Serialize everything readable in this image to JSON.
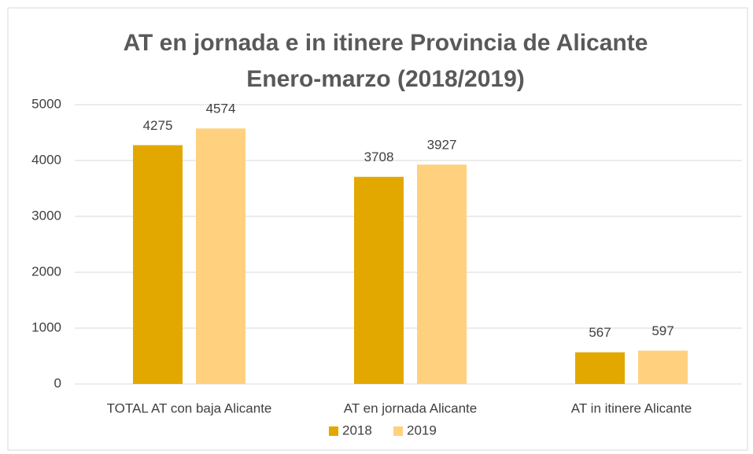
{
  "chart_data": {
    "type": "bar",
    "title": [
      "AT en jornada e in itinere Provincia de Alicante",
      "Enero-marzo (2018/2019)"
    ],
    "categories": [
      "TOTAL AT con baja Alicante",
      "AT en jornada Alicante",
      "AT in itinere Alicante"
    ],
    "series": [
      {
        "name": "2018",
        "color": "#e3a800",
        "values": [
          4275,
          3708,
          567
        ]
      },
      {
        "name": "2019",
        "color": "#ffd17f",
        "values": [
          4574,
          3927,
          597
        ]
      }
    ],
    "ylim": [
      0,
      5000
    ],
    "yticks": [
      0,
      1000,
      2000,
      3000,
      4000,
      5000
    ],
    "grid": true,
    "legend": "bottom"
  }
}
